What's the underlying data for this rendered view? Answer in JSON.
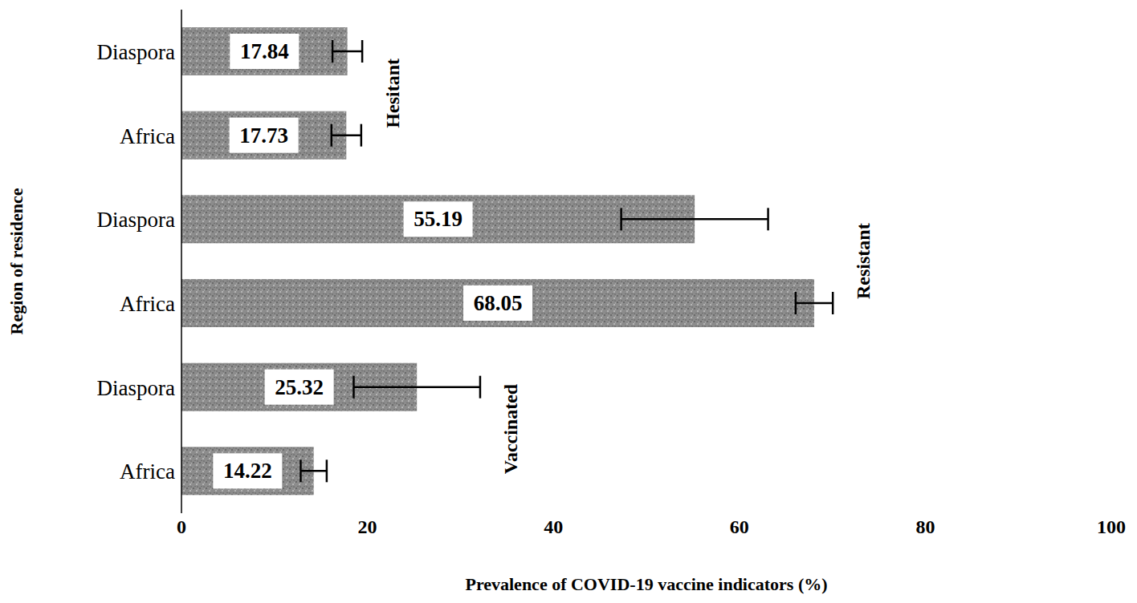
{
  "chart_data": {
    "type": "bar",
    "orientation": "horizontal",
    "categories": [
      "Diaspora",
      "Africa",
      "Diaspora",
      "Africa",
      "Diaspora",
      "Africa"
    ],
    "values": [
      17.84,
      17.73,
      55.19,
      68.05,
      25.32,
      14.22
    ],
    "errors": [
      1.6,
      1.6,
      7.9,
      2.0,
      6.8,
      1.4
    ],
    "color": "#8c8c8c",
    "xlim": [
      0,
      100
    ],
    "xticks": [
      0,
      20,
      40,
      60,
      80,
      100
    ],
    "x_label": "Prevalence of COVID-19 vaccine indicators (%)",
    "y_label": "Region of residence",
    "annotations": [
      "Hesitant",
      "Resistant",
      "Vaccinated"
    ],
    "data_labels": true,
    "grid": false
  }
}
